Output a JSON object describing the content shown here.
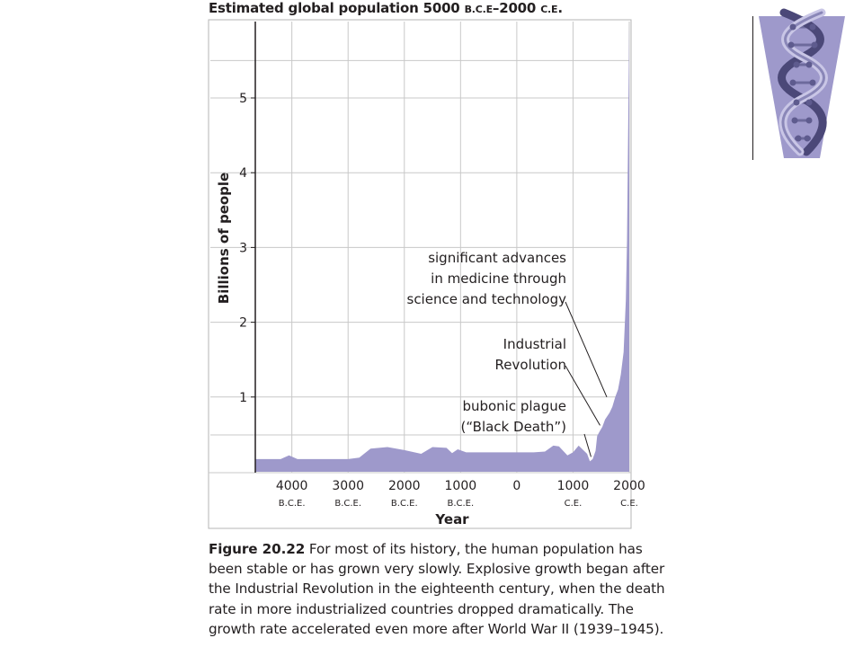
{
  "chart_data": {
    "type": "area",
    "title_main": "Estimated global population 5000 ",
    "title_bce": "B.C.E",
    "title_dash": "–2000 ",
    "title_ce": "C.E",
    "title_end": ".",
    "xlabel": "Year",
    "ylabel": "Billions of people",
    "xlim": [
      -4650,
      2000
    ],
    "ylim": [
      0,
      6
    ],
    "y_ticks": [
      "1",
      "2",
      "3",
      "4",
      "5"
    ],
    "x_ticks": [
      {
        "value": -4000,
        "year": "4000",
        "era": "B.C.E."
      },
      {
        "value": -3000,
        "year": "3000",
        "era": "B.C.E."
      },
      {
        "value": -2000,
        "year": "2000",
        "era": "B.C.E."
      },
      {
        "value": -1000,
        "year": "1000",
        "era": "B.C.E."
      },
      {
        "value": 0,
        "year": "0",
        "era": ""
      },
      {
        "value": 1000,
        "year": "1000",
        "era": "C.E."
      },
      {
        "value": 2000,
        "year": "2000",
        "era": "C.E."
      }
    ],
    "grid": true,
    "fill_color": "#9e99cb",
    "series": [
      {
        "x": [
          -4650,
          -4400,
          -4200,
          -4050,
          -3900,
          -3700,
          -3400,
          -3000,
          -2800,
          -2600,
          -2300,
          -2000,
          -1700,
          -1500,
          -1250,
          -1150,
          -1050,
          -900,
          -700,
          -300,
          0,
          300,
          500,
          650,
          750,
          900,
          1000,
          1100,
          1250,
          1300,
          1350,
          1400,
          1430,
          1480,
          1520,
          1570,
          1650,
          1700,
          1750,
          1800,
          1850,
          1900,
          1940,
          1960,
          1980,
          2000
        ],
        "y": [
          0.17,
          0.17,
          0.17,
          0.22,
          0.17,
          0.17,
          0.17,
          0.17,
          0.19,
          0.31,
          0.33,
          0.29,
          0.24,
          0.33,
          0.32,
          0.25,
          0.3,
          0.26,
          0.26,
          0.26,
          0.26,
          0.26,
          0.27,
          0.35,
          0.34,
          0.22,
          0.26,
          0.35,
          0.24,
          0.14,
          0.17,
          0.28,
          0.48,
          0.55,
          0.6,
          0.7,
          0.79,
          0.87,
          1.0,
          1.1,
          1.3,
          1.6,
          2.3,
          3.1,
          4.5,
          6.0
        ]
      }
    ],
    "annotations": [
      {
        "lines": [
          "significant advances",
          "in medicine through",
          "science and technology"
        ],
        "target_x": 1600,
        "target_y": 1.0
      },
      {
        "lines": [
          "Industrial",
          "Revolution"
        ],
        "target_x": 1480,
        "target_y": 0.62
      },
      {
        "lines": [
          "bubonic plague",
          "(“Black Death”)"
        ],
        "target_x": 1320,
        "target_y": 0.2
      }
    ]
  },
  "caption": {
    "label": "Figure 20.22",
    "line1": " For most of its history, the human population has",
    "line2": "been stable or has grown very slowly. Explosive growth began after",
    "line3": "the Industrial Revolution in the eighteenth century, when the death",
    "line4": "rate in more industrialized countries dropped dramatically. The",
    "line5": "growth rate accelerated even more after World War II (1939–1945)."
  },
  "logo": {
    "icon": "dna-double-helix-icon"
  }
}
